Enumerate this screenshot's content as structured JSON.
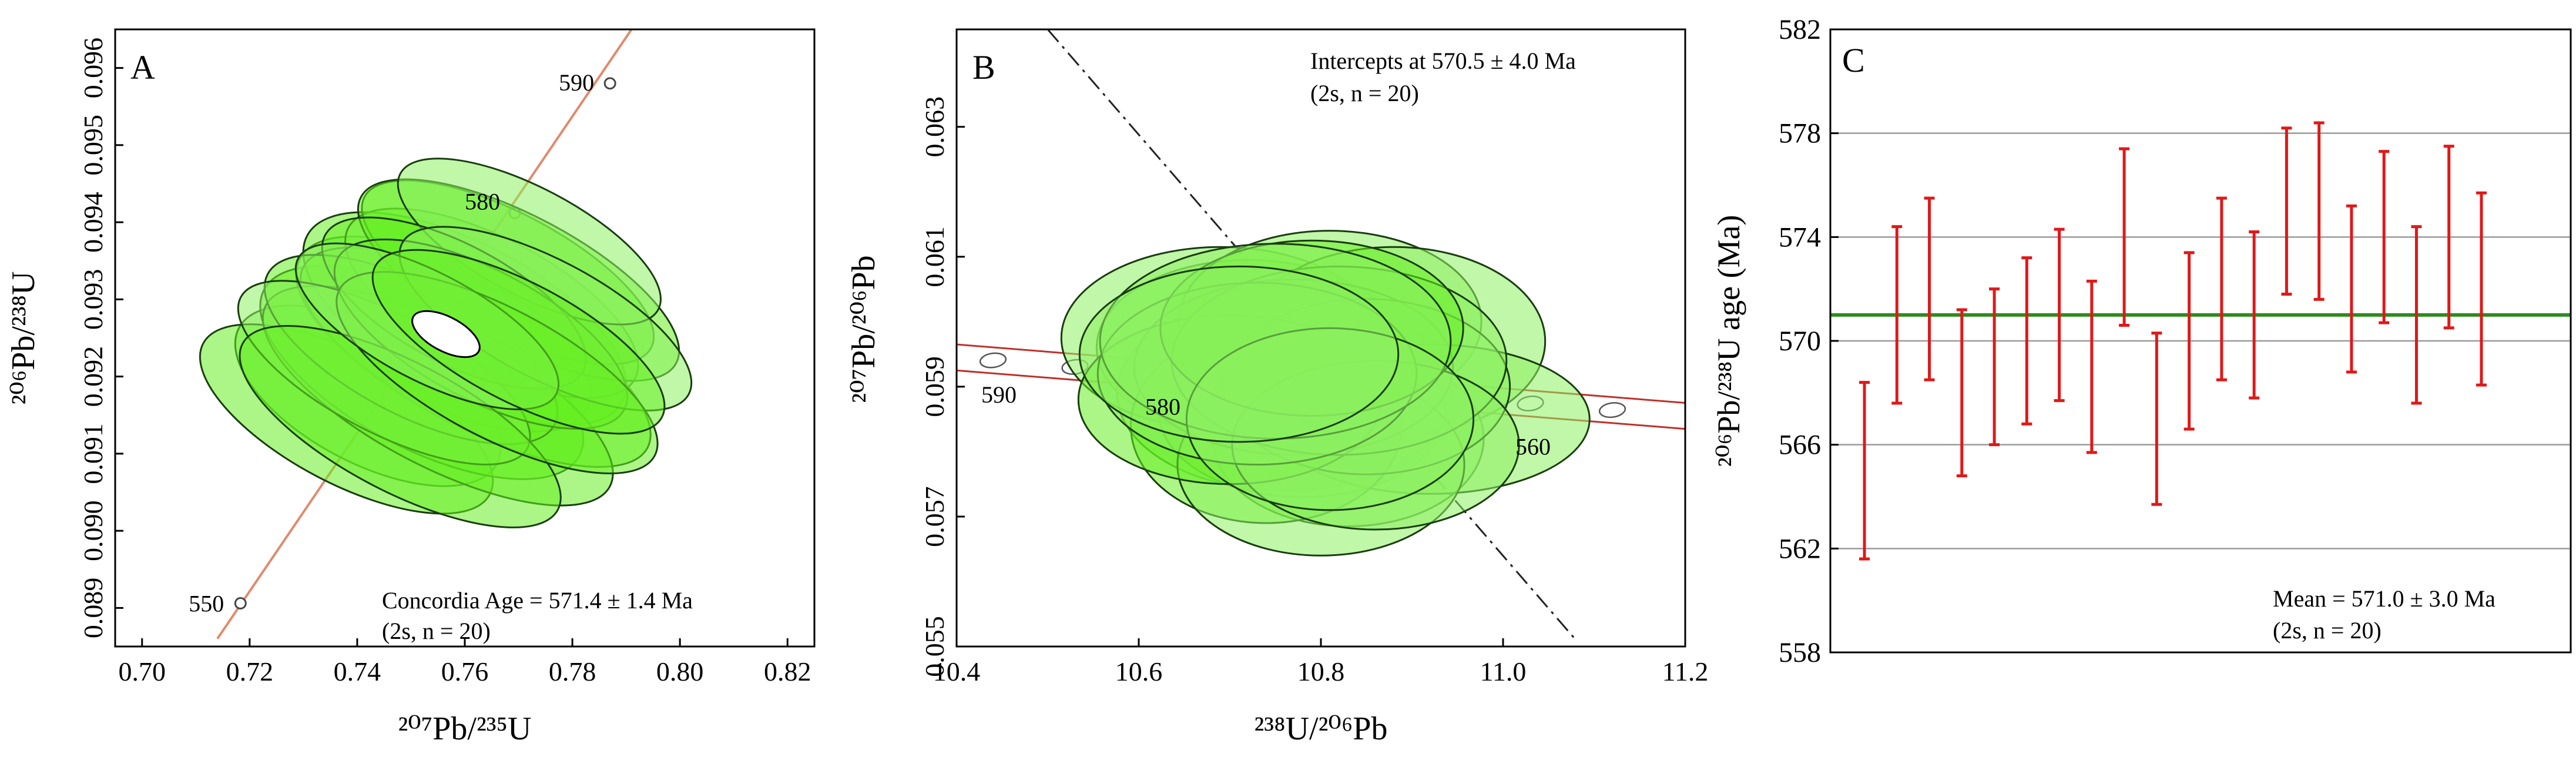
{
  "colors": {
    "ellipse_fill": "#66ee22",
    "ellipse_fill_light": "#8cf060",
    "concordia": "#e08a6c",
    "error_bar": "#e01818",
    "mean_line": "#2e8b1e",
    "grid": "#9a9a9a",
    "axis": "#000000"
  },
  "chart_data": [
    {
      "type": "scatter",
      "panel_label": "A",
      "subtype": "Wetherill concordia with 2-sigma error ellipses",
      "xlabel": "²⁰⁷Pb/²³⁵U",
      "ylabel": "²⁰⁶Pb/²³⁸U",
      "xlim": [
        0.695,
        0.825
      ],
      "ylim": [
        0.0885,
        0.0965
      ],
      "xticks": [
        0.7,
        0.72,
        0.74,
        0.76,
        0.78,
        0.8,
        0.82
      ],
      "xtick_labels": [
        "0.70",
        "0.72",
        "0.74",
        "0.76",
        "0.78",
        "0.80",
        "0.82"
      ],
      "yticks": [
        0.089,
        0.09,
        0.091,
        0.092,
        0.093,
        0.094,
        0.095,
        0.096
      ],
      "ytick_labels": [
        "0.089",
        "0.090",
        "0.091",
        "0.092",
        "0.093",
        "0.094",
        "0.095",
        "0.096"
      ],
      "concordia_points": [
        {
          "age": "550",
          "x": 0.7183,
          "y": 0.08906
        },
        {
          "age": "580",
          "x": 0.7693,
          "y": 0.09412
        },
        {
          "age": "590",
          "x": 0.787,
          "y": 0.0958
        }
      ],
      "concordia_line": {
        "x": [
          0.714,
          0.791
        ],
        "y": [
          0.0886,
          0.0965
        ]
      },
      "ellipses": [
        {
          "x": 0.742,
          "y": 0.09175,
          "a": 0.0125,
          "b": 0.00045,
          "angle": 0.004
        },
        {
          "x": 0.738,
          "y": 0.09145,
          "a": 0.012,
          "b": 0.0005,
          "angle": 0.004
        },
        {
          "x": 0.752,
          "y": 0.09205,
          "a": 0.014,
          "b": 0.00055,
          "angle": 0.004
        },
        {
          "x": 0.756,
          "y": 0.09255,
          "a": 0.013,
          "b": 0.0005,
          "angle": 0.004
        },
        {
          "x": 0.76,
          "y": 0.09275,
          "a": 0.014,
          "b": 0.00055,
          "angle": 0.004
        },
        {
          "x": 0.762,
          "y": 0.09225,
          "a": 0.013,
          "b": 0.0006,
          "angle": 0.004
        },
        {
          "x": 0.765,
          "y": 0.09295,
          "a": 0.012,
          "b": 0.0005,
          "angle": 0.004
        },
        {
          "x": 0.768,
          "y": 0.09335,
          "a": 0.011,
          "b": 0.0005,
          "angle": 0.004
        },
        {
          "x": 0.77,
          "y": 0.09325,
          "a": 0.012,
          "b": 0.00055,
          "angle": 0.004
        },
        {
          "x": 0.772,
          "y": 0.09375,
          "a": 0.01,
          "b": 0.00045,
          "angle": 0.004
        },
        {
          "x": 0.755,
          "y": 0.09175,
          "a": 0.013,
          "b": 0.0006,
          "angle": 0.004
        },
        {
          "x": 0.75,
          "y": 0.09235,
          "a": 0.012,
          "b": 0.0005,
          "angle": 0.004
        },
        {
          "x": 0.745,
          "y": 0.09205,
          "a": 0.011,
          "b": 0.0005,
          "angle": 0.004
        },
        {
          "x": 0.758,
          "y": 0.09295,
          "a": 0.011,
          "b": 0.00045,
          "angle": 0.004
        },
        {
          "x": 0.763,
          "y": 0.09255,
          "a": 0.012,
          "b": 0.0005,
          "angle": 0.004
        },
        {
          "x": 0.775,
          "y": 0.09275,
          "a": 0.011,
          "b": 0.0005,
          "angle": 0.004
        },
        {
          "x": 0.748,
          "y": 0.09135,
          "a": 0.012,
          "b": 0.00055,
          "angle": 0.004
        },
        {
          "x": 0.766,
          "y": 0.09205,
          "a": 0.012,
          "b": 0.00055,
          "angle": 0.004
        },
        {
          "x": 0.753,
          "y": 0.09265,
          "a": 0.01,
          "b": 0.00045,
          "angle": 0.004
        },
        {
          "x": 0.77,
          "y": 0.09245,
          "a": 0.011,
          "b": 0.0005,
          "angle": 0.004
        }
      ],
      "mean_ellipse": {
        "x": 0.7565,
        "y": 0.09255,
        "a": 0.0032,
        "b": 0.00015,
        "angle": 0.004
      },
      "annotation": [
        "Concordia Age = 571.4 ± 1.4 Ma",
        "(2s, n = 20)"
      ]
    },
    {
      "type": "scatter",
      "panel_label": "B",
      "subtype": "Tera-Wasserburg concordia with 2-sigma error ellipses",
      "xlabel": "²³⁸U/²⁰⁶Pb",
      "ylabel": "²⁰⁷Pb/²⁰⁶Pb",
      "xlim": [
        10.4,
        11.2
      ],
      "ylim": [
        0.055,
        0.0645
      ],
      "xticks": [
        10.4,
        10.6,
        10.8,
        11.0,
        11.2
      ],
      "xtick_labels": [
        "10.4",
        "10.6",
        "10.8",
        "11.0",
        "11.2"
      ],
      "yticks": [
        0.055,
        0.057,
        0.059,
        0.061,
        0.063
      ],
      "ytick_labels": [
        "0.055",
        "0.057",
        "0.059",
        "0.061",
        "0.063"
      ],
      "concordia_band": {
        "x": [
          10.4,
          11.2
        ],
        "y_upper": [
          0.05965,
          0.05875
        ],
        "y_lower": [
          0.05925,
          0.05835
        ]
      },
      "concordia_ticks": [
        {
          "age": "590",
          "x": 10.44
        },
        {
          "age": "580",
          "x": 10.62
        },
        {
          "age": "560",
          "x": 11.02
        }
      ],
      "concordia_small_ellipses_x": [
        10.44,
        10.53,
        10.62,
        10.71,
        11.03,
        11.12
      ],
      "discordia_line": {
        "x": [
          10.5,
          11.08
        ],
        "y": [
          0.0645,
          0.0551
        ]
      },
      "ellipses": [
        {
          "x": 10.72,
          "y": 0.0596,
          "a": 0.095,
          "b": 0.00135
        },
        {
          "x": 10.76,
          "y": 0.0589,
          "a": 0.105,
          "b": 0.0015
        },
        {
          "x": 10.69,
          "y": 0.05975,
          "a": 0.1,
          "b": 0.0014
        },
        {
          "x": 10.81,
          "y": 0.06,
          "a": 0.095,
          "b": 0.0014
        },
        {
          "x": 10.78,
          "y": 0.0586,
          "a": 0.09,
          "b": 0.0013
        },
        {
          "x": 10.88,
          "y": 0.0597,
          "a": 0.095,
          "b": 0.00145
        },
        {
          "x": 10.83,
          "y": 0.0582,
          "a": 0.085,
          "b": 0.00135
        },
        {
          "x": 10.92,
          "y": 0.0585,
          "a": 0.1,
          "b": 0.00115
        },
        {
          "x": 10.74,
          "y": 0.0584,
          "a": 0.085,
          "b": 0.0015
        },
        {
          "x": 10.8,
          "y": 0.0578,
          "a": 0.09,
          "b": 0.0014
        },
        {
          "x": 10.77,
          "y": 0.0593,
          "a": 0.1,
          "b": 0.00135
        },
        {
          "x": 10.85,
          "y": 0.059,
          "a": 0.09,
          "b": 0.00135
        },
        {
          "x": 10.7,
          "y": 0.0588,
          "a": 0.095,
          "b": 0.0013
        },
        {
          "x": 10.82,
          "y": 0.0594,
          "a": 0.105,
          "b": 0.00145
        },
        {
          "x": 10.86,
          "y": 0.0581,
          "a": 0.09,
          "b": 0.0013
        },
        {
          "x": 10.73,
          "y": 0.0592,
          "a": 0.1,
          "b": 0.0014
        },
        {
          "x": 10.79,
          "y": 0.0599,
          "a": 0.095,
          "b": 0.00135
        },
        {
          "x": 10.75,
          "y": 0.0597,
          "a": 0.11,
          "b": 0.0015
        },
        {
          "x": 10.81,
          "y": 0.0585,
          "a": 0.09,
          "b": 0.0014
        },
        {
          "x": 10.71,
          "y": 0.0595,
          "a": 0.1,
          "b": 0.00135
        }
      ],
      "annotation": [
        "Intercepts at 570.5 ± 4.0 Ma",
        "(2s, n = 20)"
      ]
    },
    {
      "type": "scatter",
      "panel_label": "C",
      "subtype": "weighted mean age plot with 2-sigma error bars",
      "xlabel": "",
      "ylabel": "²⁰⁶Pb/²³⁸U age (Ma)",
      "ylim": [
        558,
        582
      ],
      "yticks": [
        558,
        562,
        566,
        570,
        574,
        578,
        582
      ],
      "ytick_labels": [
        "558",
        "562",
        "566",
        "570",
        "574",
        "578",
        "582"
      ],
      "grid": true,
      "mean": 571.0,
      "error_bars": [
        {
          "lo": 561.6,
          "hi": 568.4
        },
        {
          "lo": 567.6,
          "hi": 574.4
        },
        {
          "lo": 568.5,
          "hi": 575.5
        },
        {
          "lo": 564.8,
          "hi": 571.2
        },
        {
          "lo": 566.0,
          "hi": 572.0
        },
        {
          "lo": 566.8,
          "hi": 573.2
        },
        {
          "lo": 567.7,
          "hi": 574.3
        },
        {
          "lo": 565.7,
          "hi": 572.3
        },
        {
          "lo": 570.6,
          "hi": 577.4
        },
        {
          "lo": 563.7,
          "hi": 570.3
        },
        {
          "lo": 566.6,
          "hi": 573.4
        },
        {
          "lo": 568.5,
          "hi": 575.5
        },
        {
          "lo": 567.8,
          "hi": 574.2
        },
        {
          "lo": 571.8,
          "hi": 578.2
        },
        {
          "lo": 571.6,
          "hi": 578.4
        },
        {
          "lo": 568.8,
          "hi": 575.2
        },
        {
          "lo": 570.7,
          "hi": 577.3
        },
        {
          "lo": 567.6,
          "hi": 574.4
        },
        {
          "lo": 570.5,
          "hi": 577.5
        },
        {
          "lo": 568.3,
          "hi": 575.7
        }
      ],
      "annotation": [
        "Mean = 571.0 ± 3.0 Ma",
        "(2s, n = 20)"
      ]
    }
  ]
}
